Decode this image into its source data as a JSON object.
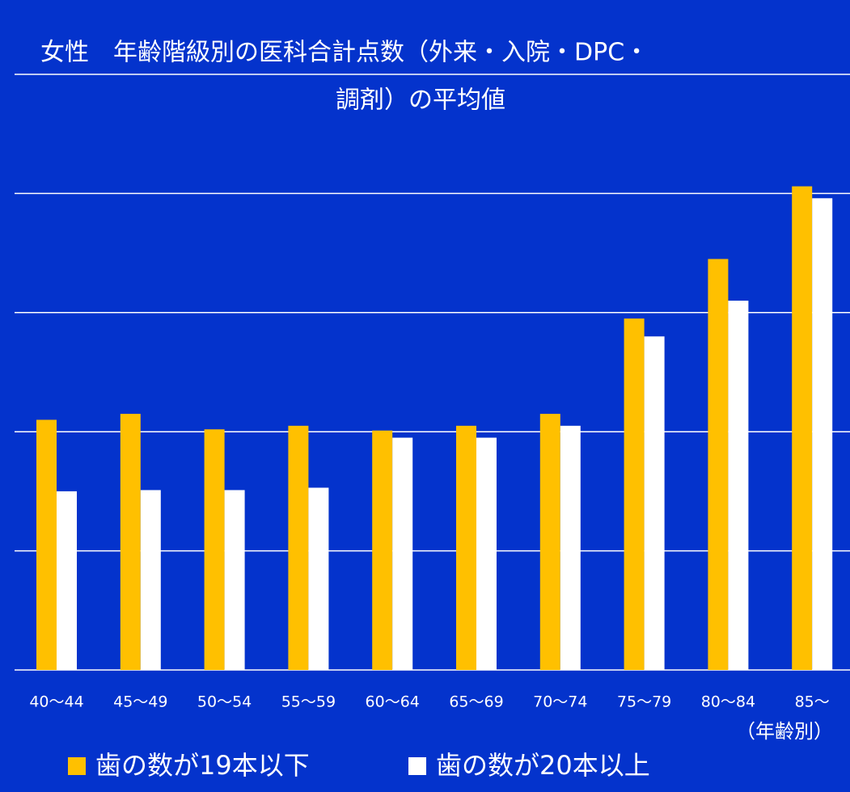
{
  "chart_data": {
    "type": "bar",
    "title_lines": [
      "女性　年齢階級別の医科合計点数（外来・入院・DPC・",
      "調剤）の平均値"
    ],
    "x_label": "（年齢別）",
    "categories": [
      "40〜44",
      "45〜49",
      "50〜54",
      "55〜59",
      "60〜64",
      "65〜69",
      "70〜74",
      "75〜79",
      "80〜84",
      "85〜"
    ],
    "series": [
      {
        "name": "歯の数が19本以下",
        "color": "#ffc000",
        "values": [
          2.1,
          2.15,
          2.02,
          2.05,
          2.01,
          2.05,
          2.15,
          2.95,
          3.45,
          4.06
        ]
      },
      {
        "name": "歯の数が20本以上",
        "color": "#ffffff",
        "values": [
          1.5,
          1.51,
          1.51,
          1.53,
          1.95,
          1.95,
          2.05,
          2.8,
          3.1,
          3.96
        ]
      }
    ],
    "ylim": [
      0,
      5
    ],
    "yticks": [
      0,
      1,
      2,
      3,
      4,
      5
    ],
    "grid": true,
    "legend": "bottom"
  }
}
